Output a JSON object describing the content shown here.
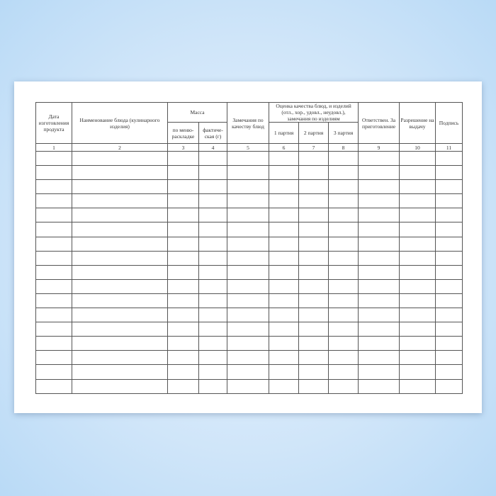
{
  "form": {
    "headers": {
      "date": "Дата изготовления продукта",
      "name": "Наименование блюда (кулинарного изделия)",
      "mass": "Масса",
      "mass_menu": "по меню-раскладке",
      "mass_actual": "фактиче-ская (г)",
      "remarks": "Замечания по качеству блюд",
      "quality": "Оценка качества блюд, и изделий (отл., хор., удовл., неудовл.), замечания по изделиям",
      "batch1": "1 партия",
      "batch2": "2 партия",
      "batch3": "3 партия",
      "responsible": "Ответствен. За приготовление",
      "permission": "Разрешение на выдачу",
      "signature": "Подпись"
    },
    "column_numbers": [
      "1",
      "2",
      "3",
      "4",
      "5",
      "6",
      "7",
      "8",
      "9",
      "10",
      "11"
    ],
    "empty_rows": 17
  }
}
